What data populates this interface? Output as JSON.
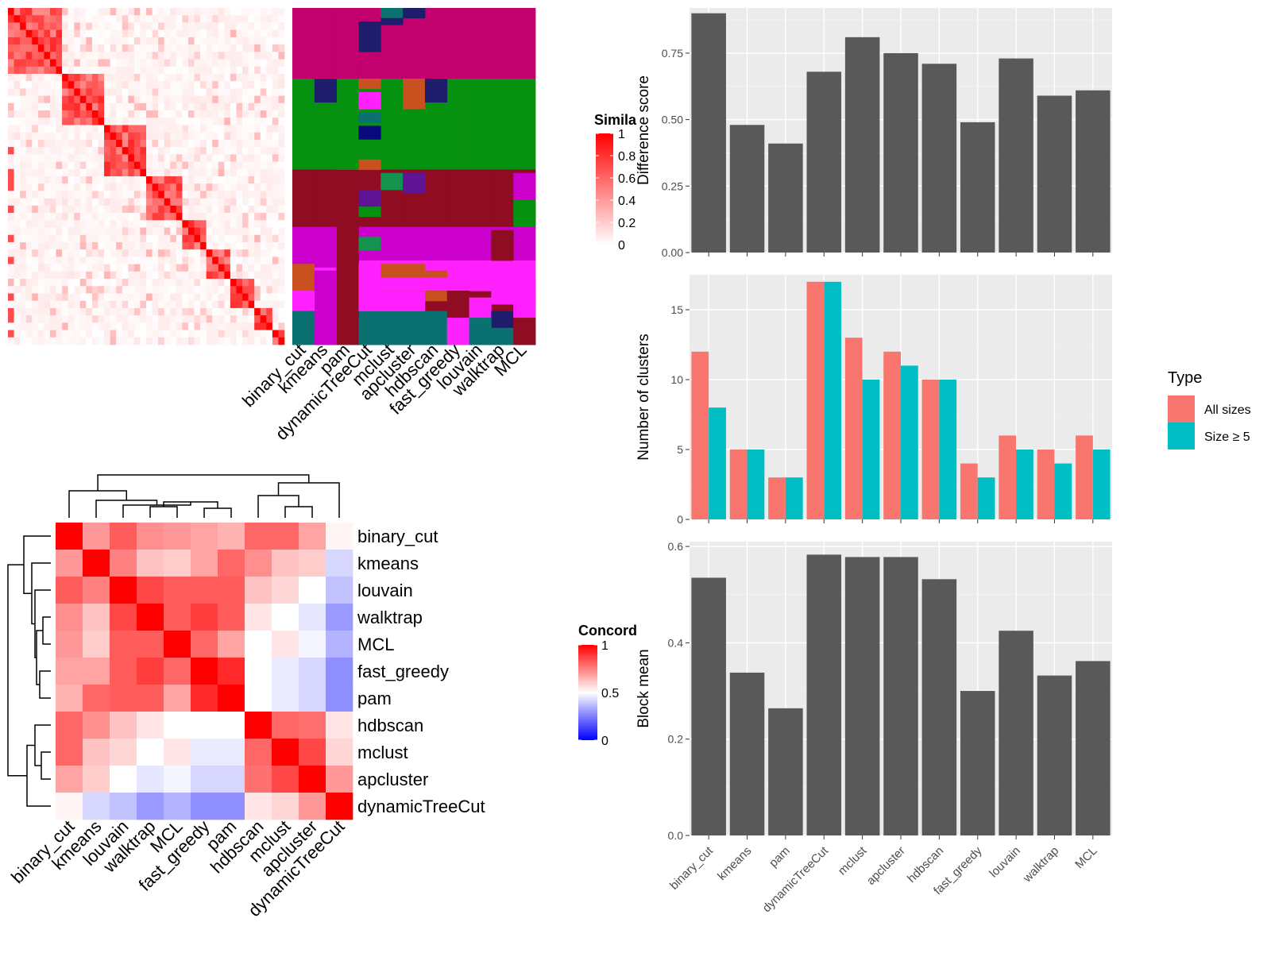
{
  "chart_data": [
    {
      "type": "heatmap",
      "legend_title": "Simila",
      "legend_ticks": [
        "0",
        "0.2",
        "0.4",
        "0.6",
        "0.8",
        "1"
      ],
      "column_labels": [
        "binary_cut",
        "kmeans",
        "pam",
        "dynamicTreeCut",
        "mclust",
        "apcluster",
        "hdbscan",
        "fast_greedy",
        "louvain",
        "walktrap",
        "MCL"
      ],
      "palette": [
        "#c2006e",
        "#079110",
        "#8f0c22",
        "#cc00cc",
        "#ff22ff",
        "#0b7070",
        "#1d1d6b",
        "#c8511f",
        "#14934f",
        "#5f1496",
        "#0a0a7c"
      ]
    },
    {
      "type": "heatmap",
      "legend_title": "Concord",
      "legend_ticks": [
        "0",
        "0.5",
        "1"
      ],
      "row_labels": [
        "binary_cut",
        "kmeans",
        "louvain",
        "walktrap",
        "MCL",
        "fast_greedy",
        "pam",
        "hdbscan",
        "mclust",
        "apcluster",
        "dynamicTreeCut"
      ],
      "col_labels": [
        "binary_cut",
        "kmeans",
        "louvain",
        "walktrap",
        "MCL",
        "fast_greedy",
        "pam",
        "hdbscan",
        "mclust",
        "apcluster",
        "dynamicTreeCut"
      ],
      "values": [
        [
          1.0,
          0.7,
          0.82,
          0.72,
          0.7,
          0.68,
          0.65,
          0.8,
          0.8,
          0.68,
          0.52
        ],
        [
          0.7,
          1.0,
          0.75,
          0.62,
          0.6,
          0.68,
          0.8,
          0.72,
          0.62,
          0.6,
          0.42
        ],
        [
          0.82,
          0.75,
          1.0,
          0.86,
          0.82,
          0.82,
          0.82,
          0.62,
          0.58,
          0.5,
          0.38
        ],
        [
          0.72,
          0.62,
          0.86,
          1.0,
          0.82,
          0.88,
          0.82,
          0.55,
          0.5,
          0.45,
          0.3
        ],
        [
          0.7,
          0.6,
          0.82,
          0.82,
          1.0,
          0.8,
          0.68,
          0.5,
          0.55,
          0.48,
          0.35
        ],
        [
          0.68,
          0.68,
          0.82,
          0.88,
          0.8,
          1.0,
          0.92,
          0.5,
          0.46,
          0.42,
          0.28
        ],
        [
          0.65,
          0.8,
          0.82,
          0.82,
          0.68,
          0.92,
          1.0,
          0.5,
          0.46,
          0.42,
          0.28
        ],
        [
          0.8,
          0.72,
          0.62,
          0.55,
          0.5,
          0.5,
          0.5,
          1.0,
          0.8,
          0.78,
          0.55
        ],
        [
          0.8,
          0.62,
          0.58,
          0.5,
          0.55,
          0.46,
          0.46,
          0.8,
          1.0,
          0.86,
          0.58
        ],
        [
          0.68,
          0.6,
          0.5,
          0.45,
          0.48,
          0.42,
          0.42,
          0.78,
          0.86,
          1.0,
          0.7
        ],
        [
          0.52,
          0.42,
          0.38,
          0.3,
          0.35,
          0.28,
          0.28,
          0.55,
          0.58,
          0.7,
          1.0
        ]
      ]
    },
    {
      "type": "bar",
      "categories": [
        "binary_cut",
        "kmeans",
        "pam",
        "dynamicTreeCut",
        "mclust",
        "apcluster",
        "hdbscan",
        "fast_greedy",
        "louvain",
        "walktrap",
        "MCL"
      ],
      "values": [
        0.9,
        0.48,
        0.41,
        0.68,
        0.81,
        0.75,
        0.71,
        0.49,
        0.73,
        0.59,
        0.61
      ],
      "ylabel": "Difference score",
      "ylim": [
        0,
        0.92
      ],
      "yticks": [
        "0.00",
        "0.25",
        "0.50",
        "0.75"
      ],
      "bar_color": "#595959",
      "grid": true
    },
    {
      "type": "bar",
      "categories": [
        "binary_cut",
        "kmeans",
        "pam",
        "dynamicTreeCut",
        "mclust",
        "apcluster",
        "hdbscan",
        "fast_greedy",
        "louvain",
        "walktrap",
        "MCL"
      ],
      "series": [
        {
          "name": "All sizes",
          "color": "#f8766d",
          "values": [
            12,
            5,
            3,
            17,
            13,
            12,
            10,
            4,
            6,
            5,
            6
          ]
        },
        {
          "name": "Size ≥ 5",
          "color": "#00bfc4",
          "values": [
            8,
            5,
            3,
            17,
            10,
            11,
            10,
            3,
            5,
            4,
            5
          ]
        }
      ],
      "ylabel": "Number of clusters",
      "ylim": [
        0,
        17.5
      ],
      "yticks": [
        "0",
        "5",
        "10",
        "15"
      ],
      "legend_title": "Type",
      "legend_position": "right",
      "grid": true
    },
    {
      "type": "bar",
      "categories": [
        "binary_cut",
        "kmeans",
        "pam",
        "dynamicTreeCut",
        "mclust",
        "apcluster",
        "hdbscan",
        "fast_greedy",
        "louvain",
        "walktrap",
        "MCL"
      ],
      "values": [
        0.535,
        0.338,
        0.264,
        0.583,
        0.578,
        0.578,
        0.532,
        0.3,
        0.425,
        0.332,
        0.362
      ],
      "ylabel": "Block mean",
      "ylim": [
        0,
        0.61
      ],
      "yticks": [
        "0.0",
        "0.2",
        "0.4",
        "0.6"
      ],
      "bar_color": "#595959",
      "grid": true
    }
  ]
}
